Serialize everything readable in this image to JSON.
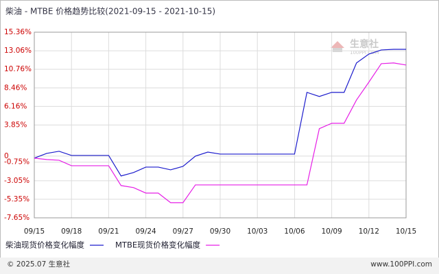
{
  "chart_data": {
    "type": "line",
    "title": "柴油 - MTBE 价格趋势比较(2021-09-15 - 2021-10-15)",
    "categories": [
      "09/15",
      null,
      null,
      "09/18",
      null,
      null,
      "09/21",
      null,
      null,
      "09/24",
      null,
      null,
      "09/27",
      null,
      null,
      "09/30",
      null,
      null,
      "10/03",
      null,
      null,
      "10/06",
      null,
      null,
      "10/09",
      null,
      null,
      "10/12",
      null,
      null,
      "10/15"
    ],
    "series": [
      {
        "name": "柴油现货价格变化幅度",
        "color": "#1a1acc",
        "values": [
          -0.25,
          0.34,
          0.6,
          0.08,
          0.08,
          0.08,
          0.08,
          -2.46,
          -2.04,
          -1.36,
          -1.36,
          -1.7,
          -1.27,
          0,
          0.5,
          0.25,
          0.25,
          0.25,
          0.25,
          0.25,
          0.25,
          0.25,
          7.9,
          7.39,
          7.9,
          7.9,
          11.55,
          12.65,
          13.16,
          13.24,
          13.24
        ]
      },
      {
        "name": "MTBE现货价格变化幅度",
        "color": "#e61ee6",
        "values": [
          -0.25,
          -0.42,
          -0.51,
          -1.19,
          -1.19,
          -1.19,
          -1.19,
          -3.65,
          -3.9,
          -4.58,
          -4.58,
          -5.77,
          -5.77,
          -3.57,
          -3.57,
          -3.57,
          -3.57,
          -3.57,
          -3.57,
          -3.57,
          -3.57,
          -3.57,
          -3.57,
          3.4,
          4.07,
          4.07,
          6.96,
          9.17,
          11.46,
          11.55,
          11.29
        ]
      }
    ],
    "ylim": [
      -7.65,
      15.36
    ],
    "yticks": [
      {
        "value": -7.65,
        "label": "-7.65%"
      },
      {
        "value": -5.35,
        "label": "-5.35%"
      },
      {
        "value": -3.05,
        "label": "-3.05%"
      },
      {
        "value": -0.75,
        "label": "-0.75%"
      },
      0,
      {
        "value": 3.85,
        "label": "3.85%"
      },
      {
        "value": 6.16,
        "label": "6.16%"
      },
      {
        "value": 8.46,
        "label": "8.46%"
      },
      {
        "value": 10.76,
        "label": "10.76%"
      },
      {
        "value": 13.06,
        "label": "13.06%"
      },
      {
        "value": 15.36,
        "label": "15.36%"
      }
    ],
    "grid": true
  },
  "watermark": {
    "name": "生意社",
    "site": "100PPI.COM"
  },
  "footer": {
    "copyright": "© 2025.07 生意社",
    "site": "www.100PPI.com"
  }
}
